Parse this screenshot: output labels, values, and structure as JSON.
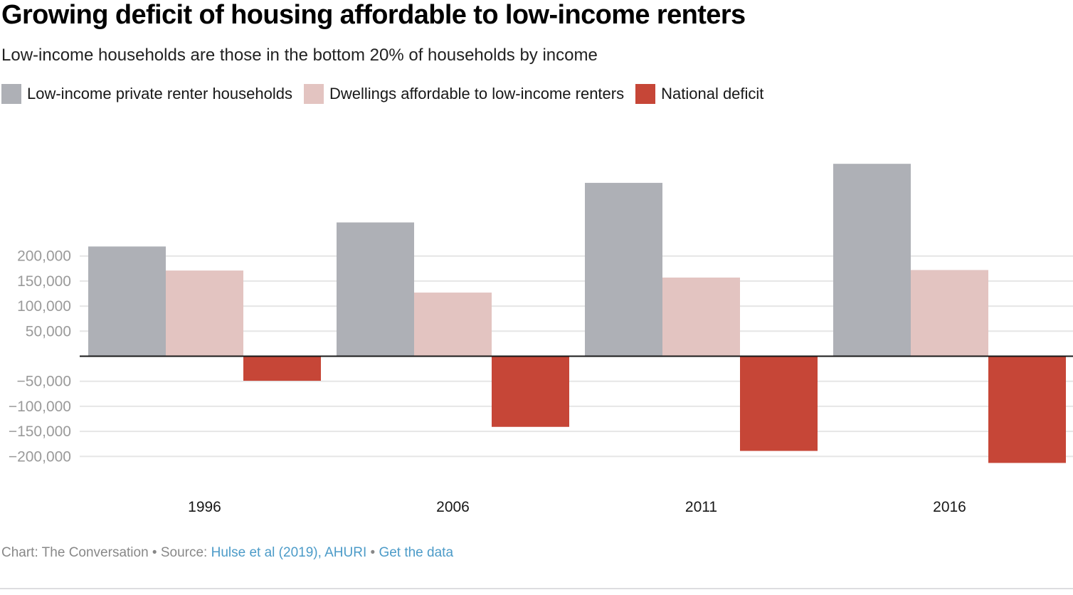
{
  "title": "Growing deficit of housing affordable to low-income renters",
  "subtitle": "Low-income households are those in the bottom 20% of households by income",
  "footer": {
    "prefix": "Chart: The Conversation • Source: ",
    "source_link": "Hulse et al (2019), AHURI",
    "separator": " • ",
    "data_link": "Get the data"
  },
  "chart_data": {
    "type": "bar",
    "title": "Growing deficit of housing affordable to low-income renters",
    "subtitle": "Low-income households are those in the bottom 20% of households by income",
    "xlabel": "",
    "ylabel": "",
    "categories": [
      "1996",
      "2006",
      "2011",
      "2016"
    ],
    "series": [
      {
        "name": "Low-income private renter households",
        "color": "#aeb0b6",
        "values": [
          219000,
          267000,
          346000,
          384000
        ]
      },
      {
        "name": "Dwellings affordable to low-income renters",
        "color": "#e3c4c1",
        "values": [
          171000,
          127000,
          157000,
          172000
        ]
      },
      {
        "name": "National deficit",
        "color": "#c64637",
        "values": [
          -49000,
          -141000,
          -189000,
          -213000
        ]
      }
    ],
    "yticks": [
      200000,
      150000,
      100000,
      50000,
      -50000,
      -100000,
      -150000,
      -200000
    ],
    "ytick_labels": [
      "200,000",
      "150,000",
      "100,000",
      "50,000",
      "−50,000",
      "−100,000",
      "−150,000",
      "−200,000"
    ],
    "ylim": [
      -240000,
      400000
    ],
    "grid": true,
    "legend_position": "top-left"
  }
}
